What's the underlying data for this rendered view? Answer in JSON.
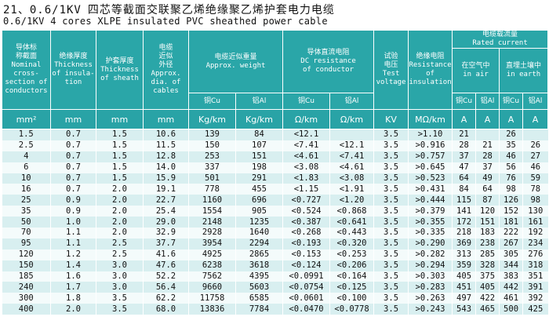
{
  "title": {
    "number": "21、0.6/1KV",
    "zh": "四芯等截面交联聚乙烯绝缘聚乙烯护套电力电缆",
    "en": "0.6/1KV 4 cores XLPE insulated PVC sheathed power cable"
  },
  "headers": {
    "cross_section": "导体标\n称截面\nNominal\ncross-\nsection of\nconductors",
    "insulation_thickness": "绝缘厚度\nThickness\nof insula-\ntion",
    "sheath_thickness": "护套厚度\nThickness\nof sheath",
    "diameter": "电缆\n近似\n外径\nApprox.\ndia. of\ncables",
    "weight_group": "电缆近似重量\nApprox. weight",
    "weight_cu": "铜Cu",
    "weight_al": "铝Al",
    "dc_group": "导体直流电阻\nDC resistance\nof conductor",
    "dc_cu": "铜Cu",
    "dc_al": "铝Al",
    "test_voltage": "试验\n电压\nTest\nvoltage",
    "insulation_resistance": "绝缘电阻\nResistance\nof\ninsulation",
    "current_group": "电缆载流量\nRated current",
    "in_air": "在空气中\nin air",
    "in_earth": "直埋土壤中\nin earth",
    "air_cu": "铜Cu",
    "air_al": "铝Al",
    "earth_cu": "铜Cu",
    "earth_al": "铝Al"
  },
  "units": [
    "mm²",
    "mm",
    "mm",
    "mm",
    "Kg/km",
    "Kg/km",
    "Ω/km",
    "Ω/km",
    "KV",
    "MΩ/km",
    "A",
    "A",
    "A",
    "A"
  ],
  "rows": [
    [
      "1.5",
      "0.7",
      "1.5",
      "10.6",
      "139",
      "84",
      "<12.1",
      "",
      "3.5",
      ">1.10",
      "21",
      "",
      "26",
      ""
    ],
    [
      "2.5",
      "0.7",
      "1.5",
      "11.5",
      "150",
      "107",
      "<7.41",
      "<12.1",
      "3.5",
      ">0.916",
      "28",
      "21",
      "35",
      "26"
    ],
    [
      "4",
      "0.7",
      "1.5",
      "12.8",
      "253",
      "151",
      "<4.61",
      "<7.41",
      "3.5",
      ">0.757",
      "37",
      "28",
      "46",
      "27"
    ],
    [
      "6",
      "0.7",
      "1.5",
      "14.0",
      "337",
      "198",
      "<3.08",
      "<4.61",
      "3.5",
      ">0.645",
      "47",
      "37",
      "56",
      "46"
    ],
    [
      "10",
      "0.7",
      "1.5",
      "15.9",
      "501",
      "291",
      "<1.83",
      "<3.08",
      "3.5",
      ">0.523",
      "64",
      "49",
      "76",
      "59"
    ],
    [
      "16",
      "0.7",
      "2.0",
      "19.1",
      "778",
      "455",
      "<1.15",
      "<1.91",
      "3.5",
      ">0.431",
      "84",
      "64",
      "98",
      "78"
    ],
    [
      "25",
      "0.9",
      "2.0",
      "22.7",
      "1160",
      "696",
      "<0.727",
      "<1.20",
      "3.5",
      ">0.444",
      "115",
      "87",
      "126",
      "98"
    ],
    [
      "35",
      "0.9",
      "2.0",
      "25.4",
      "1554",
      "905",
      "<0.524",
      "<0.868",
      "3.5",
      ">0.379",
      "141",
      "120",
      "152",
      "130"
    ],
    [
      "50",
      "1.0",
      "2.0",
      "29.0",
      "2148",
      "1235",
      "<0.387",
      "<0.641",
      "3.5",
      ">0.355",
      "172",
      "151",
      "181",
      "161"
    ],
    [
      "70",
      "1.1",
      "2.0",
      "32.9",
      "2928",
      "1640",
      "<0.268",
      "<0.443",
      "3.5",
      ">0.335",
      "218",
      "183",
      "222",
      "192"
    ],
    [
      "95",
      "1.1",
      "2.5",
      "37.7",
      "3954",
      "2294",
      "<0.193",
      "<0.320",
      "3.5",
      ">0.290",
      "369",
      "238",
      "267",
      "234"
    ],
    [
      "120",
      "1.2",
      "2.5",
      "41.6",
      "4925",
      "2865",
      "<0.153",
      "<0.253",
      "3.5",
      ">0.282",
      "313",
      "285",
      "305",
      "276"
    ],
    [
      "150",
      "1.4",
      "3.0",
      "47.6",
      "6238",
      "3618",
      "<0.124",
      "<0.206",
      "3.5",
      ">0.294",
      "359",
      "328",
      "344",
      "318"
    ],
    [
      "185",
      "1.6",
      "3.0",
      "52.2",
      "7562",
      "4395",
      "<0.0991",
      "<0.164",
      "3.5",
      ">0.303",
      "405",
      "375",
      "383",
      "351"
    ],
    [
      "240",
      "1.7",
      "3.0",
      "56.4",
      "9660",
      "5603",
      "<0.0754",
      "<0.125",
      "3.5",
      ">0.283",
      "451",
      "405",
      "442",
      "391"
    ],
    [
      "300",
      "1.8",
      "3.5",
      "62.2",
      "11758",
      "6585",
      "<0.0601",
      "<0.100",
      "3.5",
      ">0.263",
      "497",
      "422",
      "461",
      "392"
    ],
    [
      "400",
      "2.0",
      "3.5",
      "68.0",
      "13836",
      "7784",
      "<0.0470",
      "<0.0778",
      "3.5",
      ">0.243",
      "543",
      "465",
      "500",
      "425"
    ]
  ],
  "colors": {
    "header_bg": "#2aa6a8",
    "row_odd": "#d8eff0",
    "row_even": "#f4fbfb"
  }
}
